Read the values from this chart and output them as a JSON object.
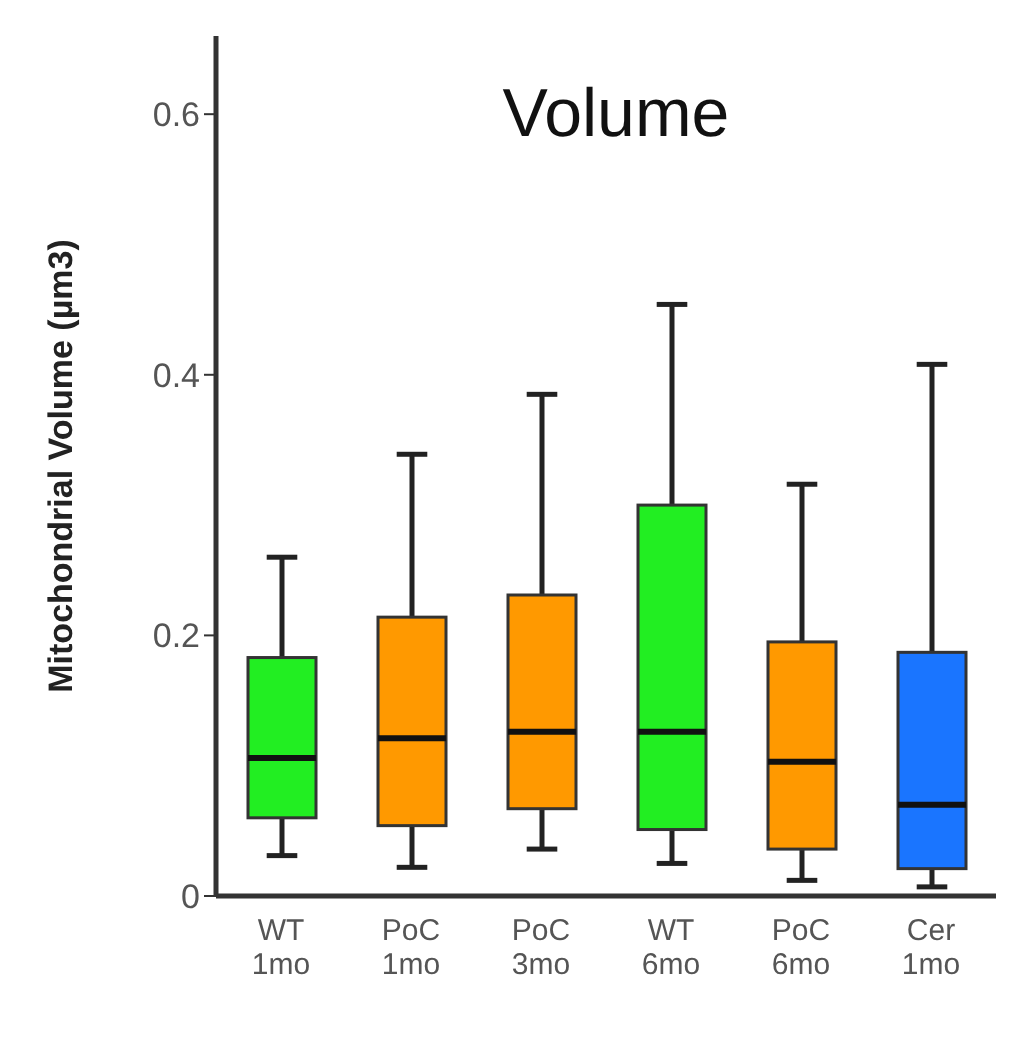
{
  "chart_data": {
    "type": "box",
    "title": "Volume",
    "ylabel": "Mitochondrial Volume (µm3)",
    "categories": [
      "WT\n1mo",
      "PoC\n1mo",
      "PoC\n3mo",
      "WT\n6mo",
      "PoC\n6mo",
      "Cer\n1mo"
    ],
    "colors": [
      "#22ee22",
      "#ff9900",
      "#ff9900",
      "#22ee22",
      "#ff9900",
      "#1a75ff"
    ],
    "boxes": [
      {
        "low": 0.031,
        "q1": 0.06,
        "median": 0.106,
        "q3": 0.183,
        "high": 0.26
      },
      {
        "low": 0.022,
        "q1": 0.054,
        "median": 0.121,
        "q3": 0.214,
        "high": 0.339
      },
      {
        "low": 0.036,
        "q1": 0.067,
        "median": 0.126,
        "q3": 0.231,
        "high": 0.385
      },
      {
        "low": 0.025,
        "q1": 0.051,
        "median": 0.126,
        "q3": 0.3,
        "high": 0.454
      },
      {
        "low": 0.012,
        "q1": 0.036,
        "median": 0.103,
        "q3": 0.195,
        "high": 0.316
      },
      {
        "low": 0.007,
        "q1": 0.021,
        "median": 0.07,
        "q3": 0.187,
        "high": 0.408
      }
    ],
    "ylim": [
      0,
      0.66
    ],
    "yticks": [
      0,
      0.2,
      0.4,
      0.6
    ]
  }
}
